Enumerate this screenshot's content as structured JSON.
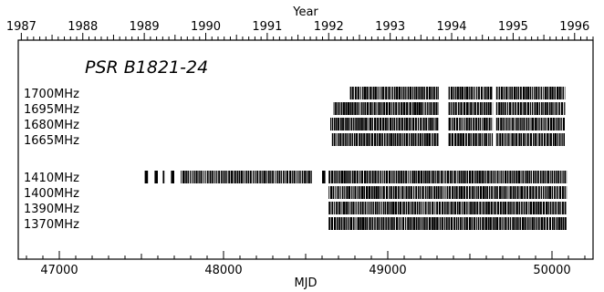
{
  "chart_data": {
    "type": "timeline",
    "title": "PSR B1821-24",
    "x_top": {
      "label": "Year",
      "ticks": [
        "1987",
        "1988",
        "1989",
        "1990",
        "1991",
        "1992",
        "1993",
        "1994",
        "1995",
        "1996"
      ],
      "range": [
        1986.95,
        1996.3
      ]
    },
    "x_bottom": {
      "label": "MJD",
      "ticks": [
        47000,
        48000,
        49000,
        50000
      ],
      "range": [
        46750,
        50250
      ]
    },
    "series": [
      {
        "name": "1700MHz",
        "segments": [
          [
            48770,
            49310
          ],
          [
            49370,
            49640
          ],
          [
            49660,
            50080
          ]
        ]
      },
      {
        "name": "1695MHz",
        "segments": [
          [
            48670,
            49310
          ],
          [
            49370,
            49640
          ],
          [
            49660,
            50080
          ]
        ]
      },
      {
        "name": "1680MHz",
        "segments": [
          [
            48650,
            49310
          ],
          [
            49370,
            49640
          ],
          [
            49660,
            50080
          ]
        ]
      },
      {
        "name": "1665MHz",
        "segments": [
          [
            48660,
            49310
          ],
          [
            49370,
            49640
          ],
          [
            49660,
            50080
          ]
        ]
      },
      {
        "name": "1410MHz",
        "segments": [
          [
            47520,
            47540
          ],
          [
            47580,
            47600
          ],
          [
            47630,
            47640
          ],
          [
            47680,
            47700
          ],
          [
            47740,
            48540
          ],
          [
            48600,
            48620
          ],
          [
            48640,
            50090
          ]
        ]
      },
      {
        "name": "1400MHz",
        "segments": [
          [
            48640,
            50090
          ]
        ]
      },
      {
        "name": "1390MHz",
        "segments": [
          [
            48640,
            50090
          ]
        ]
      },
      {
        "name": "1370MHz",
        "segments": [
          [
            48640,
            50090
          ]
        ]
      }
    ]
  }
}
